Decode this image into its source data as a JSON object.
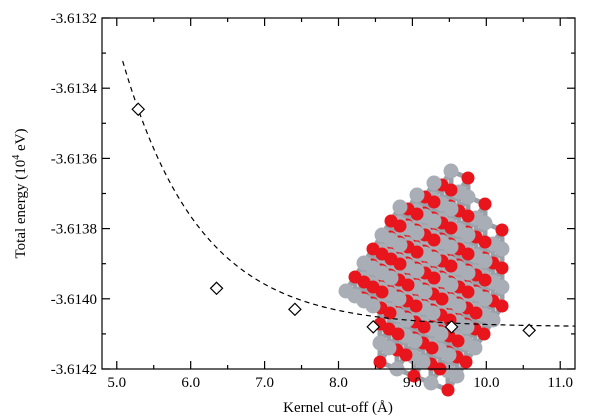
{
  "chart_data": {
    "type": "scatter",
    "xlabel": "Kernel cut-off (Å)",
    "ylabel": "Total energy (10",
    "ylabel_sup": "4",
    "ylabel_unit": " eV)",
    "xlim": [
      4.8,
      11.2
    ],
    "ylim": [
      -3.6142,
      -3.6132
    ],
    "x_ticks": [
      "5.0",
      "6.0",
      "7.0",
      "8.0",
      "9.0",
      "10.0",
      "11.0"
    ],
    "y_ticks": [
      "-3.6132",
      "-3.6134",
      "-3.6136",
      "-3.6138",
      "-3.6140",
      "-3.6142"
    ],
    "grid": false,
    "series": [
      {
        "marker": "diamond",
        "x": [
          5.29,
          6.35,
          7.41,
          8.47,
          9.53,
          10.58
        ],
        "y": [
          -3.61346,
          -3.61397,
          -3.61403,
          -3.61408,
          -3.61408,
          -3.61409
        ]
      }
    ],
    "fit": {
      "style": "dashed",
      "asymptote": -3.61408,
      "amplitude": 0.00062,
      "decay": 1.05,
      "x0": 5.29
    },
    "inset": {
      "type": "crystal-structure",
      "colors": {
        "oxygen": "#e8151c",
        "metal": "#a9adb5"
      }
    }
  }
}
